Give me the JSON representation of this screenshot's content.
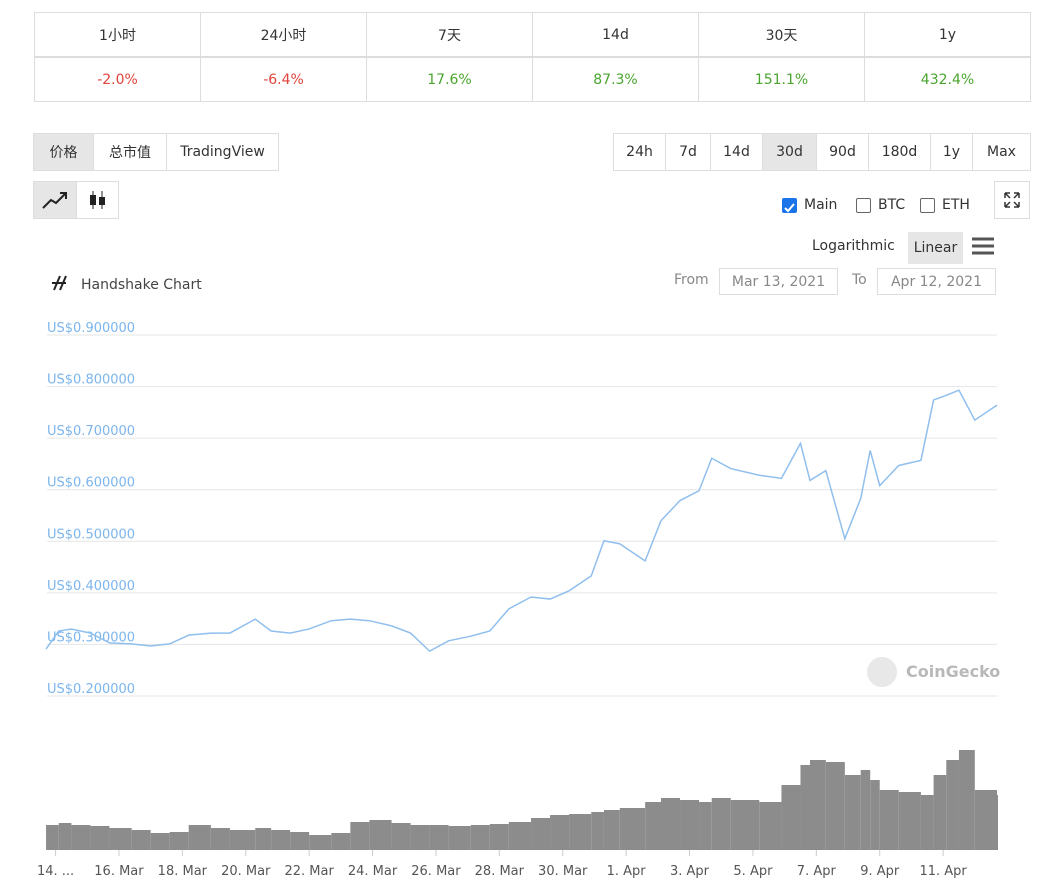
{
  "stats": {
    "headers": [
      "1小时",
      "24小时",
      "7天",
      "14d",
      "30天",
      "1y"
    ],
    "values": [
      "-2.0%",
      "-6.4%",
      "17.6%",
      "87.3%",
      "151.1%",
      "432.4%"
    ]
  },
  "tabs": [
    "价格",
    "总市值",
    "TradingView"
  ],
  "ranges": [
    "24h",
    "7d",
    "14d",
    "30d",
    "90d",
    "180d",
    "1y",
    "Max"
  ],
  "checkboxes": [
    "Main",
    "BTC",
    "ETH"
  ],
  "scale_options": [
    "Logarithmic",
    "Linear"
  ],
  "chart_data": {
    "type": "line",
    "title": "Handshake Chart",
    "from_label": "From",
    "from": "Mar 13, 2021",
    "to_label": "To",
    "to": "Apr 12, 2021",
    "watermark": "CoinGecko",
    "color": "#90bfee",
    "volume_color": "#8c8c8c",
    "x": [
      0.7,
      1.1,
      1.5,
      2.1,
      2.7,
      3.4,
      4.0,
      4.6,
      5.2,
      5.9,
      6.5,
      7.3,
      7.8,
      8.4,
      9.0,
      9.7,
      10.3,
      10.9,
      11.6,
      12.2,
      12.8,
      13.4,
      14.1,
      14.7,
      15.3,
      16.0,
      16.6,
      17.2,
      17.9,
      18.3,
      18.8,
      19.6,
      20.1,
      20.7,
      21.3,
      21.7,
      22.3,
      23.2,
      23.9,
      24.5,
      24.8,
      25.3,
      25.9,
      26.4,
      26.7,
      27.0,
      27.6,
      28.3,
      28.7,
      29.1,
      29.5,
      30.0,
      30.7
    ],
    "values": [
      0.291,
      0.326,
      0.33,
      0.322,
      0.303,
      0.301,
      0.297,
      0.301,
      0.318,
      0.322,
      0.322,
      0.349,
      0.326,
      0.322,
      0.33,
      0.346,
      0.349,
      0.346,
      0.336,
      0.322,
      0.287,
      0.307,
      0.316,
      0.326,
      0.369,
      0.392,
      0.388,
      0.404,
      0.433,
      0.501,
      0.495,
      0.462,
      0.54,
      0.579,
      0.598,
      0.661,
      0.641,
      0.628,
      0.622,
      0.69,
      0.618,
      0.637,
      0.505,
      0.583,
      0.676,
      0.608,
      0.647,
      0.657,
      0.774,
      0.783,
      0.793,
      0.735,
      0.764
    ],
    "volume_values": [
      25,
      27,
      25,
      24,
      22,
      20,
      17,
      18,
      25,
      22,
      20,
      22,
      20,
      18,
      15,
      17,
      28,
      30,
      27,
      25,
      25,
      24,
      25,
      26,
      28,
      32,
      35,
      36,
      38,
      40,
      42,
      48,
      52,
      50,
      48,
      52,
      50,
      48,
      65,
      85,
      90,
      88,
      75,
      80,
      70,
      60,
      58,
      55,
      75,
      90,
      100,
      60,
      55
    ],
    "volume_lim": [
      0,
      100
    ],
    "xlim": [
      0.73,
      30.7
    ],
    "xticks": [
      {
        "value": 1,
        "label": "14. ..."
      },
      {
        "value": 3,
        "label": "16. Mar"
      },
      {
        "value": 5,
        "label": "18. Mar"
      },
      {
        "value": 7,
        "label": "20. Mar"
      },
      {
        "value": 9,
        "label": "22. Mar"
      },
      {
        "value": 11,
        "label": "24. Mar"
      },
      {
        "value": 13,
        "label": "26. Mar"
      },
      {
        "value": 15,
        "label": "28. Mar"
      },
      {
        "value": 17,
        "label": "30. Mar"
      },
      {
        "value": 19,
        "label": "1. Apr"
      },
      {
        "value": 21,
        "label": "3. Apr"
      },
      {
        "value": 23,
        "label": "5. Apr"
      },
      {
        "value": 25,
        "label": "7. Apr"
      },
      {
        "value": 27,
        "label": "9. Apr"
      },
      {
        "value": 29,
        "label": "11. Apr"
      }
    ],
    "ylim": [
      0.2,
      0.9
    ],
    "yticks": [
      {
        "value": 0.9,
        "label": "US$0.900000"
      },
      {
        "value": 0.8,
        "label": "US$0.800000"
      },
      {
        "value": 0.7,
        "label": "US$0.700000"
      },
      {
        "value": 0.6,
        "label": "US$0.600000"
      },
      {
        "value": 0.5,
        "label": "US$0.500000"
      },
      {
        "value": 0.4,
        "label": "US$0.400000"
      },
      {
        "value": 0.3,
        "label": "US$0.300000"
      },
      {
        "value": 0.2,
        "label": "US$0.200000"
      }
    ],
    "grid": true
  }
}
